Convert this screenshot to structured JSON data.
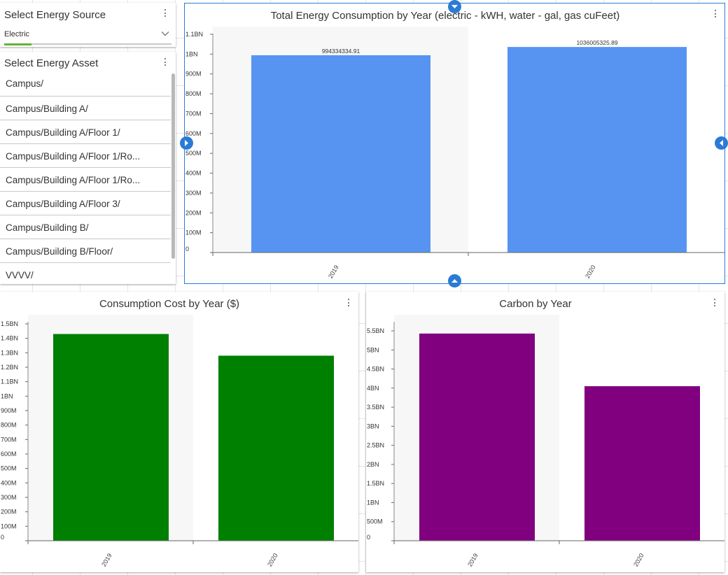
{
  "energy_source": {
    "title": "Select Energy Source",
    "value": "Electric"
  },
  "energy_asset": {
    "title": "Select Energy Asset",
    "items": [
      "Campus/",
      "Campus/Building A/",
      "Campus/Building A/Floor 1/",
      "Campus/Building A/Floor 1/Ro...",
      "Campus/Building A/Floor 1/Ro...",
      "Campus/Building A/Floor 3/",
      "Campus/Building B/",
      "Campus/Building B/Floor/",
      "VVVV/"
    ]
  },
  "icons": {
    "menu": "kebab-menu-icon",
    "dropdown": "chevron-down-icon",
    "resize": "resize-handle-icon"
  },
  "colors": {
    "accent_blue": "#2b7bd6",
    "energy_bar": "#5794f2",
    "cost_bar": "#008000",
    "carbon_bar": "#800080",
    "dropdown_underline": "#63b32e"
  },
  "chart_data": [
    {
      "id": "energy",
      "type": "bar",
      "title": "Total Energy Consumption by Year (electric - kWH, water - gal, gas cuFeet)",
      "categories": [
        "2019",
        "2020"
      ],
      "values": [
        994334334.91,
        1036005325.89
      ],
      "data_labels": [
        "994334334.91",
        "1036005325.89"
      ],
      "ylim": [
        0,
        1100000000
      ],
      "yticks": [
        {
          "v": 0,
          "label": "0"
        },
        {
          "v": 100000000,
          "label": "100M"
        },
        {
          "v": 200000000,
          "label": "200M"
        },
        {
          "v": 300000000,
          "label": "300M"
        },
        {
          "v": 400000000,
          "label": "400M"
        },
        {
          "v": 500000000,
          "label": "500M"
        },
        {
          "v": 600000000,
          "label": "600M"
        },
        {
          "v": 700000000,
          "label": "700M"
        },
        {
          "v": 800000000,
          "label": "800M"
        },
        {
          "v": 900000000,
          "label": "900M"
        },
        {
          "v": 1000000000,
          "label": "1BN"
        },
        {
          "v": 1100000000,
          "label": "1.1BN"
        }
      ],
      "color": "#5794f2"
    },
    {
      "id": "cost",
      "type": "bar",
      "title": "Consumption Cost by Year ($)",
      "categories": [
        "2019",
        "2020"
      ],
      "values": [
        1430000000,
        1280000000
      ],
      "ylim": [
        0,
        1500000000
      ],
      "yticks": [
        {
          "v": 0,
          "label": "0"
        },
        {
          "v": 100000000,
          "label": "100M"
        },
        {
          "v": 200000000,
          "label": "200M"
        },
        {
          "v": 300000000,
          "label": "300M"
        },
        {
          "v": 400000000,
          "label": "400M"
        },
        {
          "v": 500000000,
          "label": "500M"
        },
        {
          "v": 600000000,
          "label": "600M"
        },
        {
          "v": 700000000,
          "label": "700M"
        },
        {
          "v": 800000000,
          "label": "800M"
        },
        {
          "v": 900000000,
          "label": "900M"
        },
        {
          "v": 1000000000,
          "label": "1BN"
        },
        {
          "v": 1100000000,
          "label": "1.1BN"
        },
        {
          "v": 1200000000,
          "label": "1.2BN"
        },
        {
          "v": 1300000000,
          "label": "1.3BN"
        },
        {
          "v": 1400000000,
          "label": "1.4BN"
        },
        {
          "v": 1500000000,
          "label": "1.5BN"
        }
      ],
      "color": "#008000"
    },
    {
      "id": "carbon",
      "type": "bar",
      "title": "Carbon by Year",
      "categories": [
        "2019",
        "2020"
      ],
      "values": [
        5430000000,
        4050000000
      ],
      "ylim": [
        0,
        5500000000
      ],
      "yticks": [
        {
          "v": 0,
          "label": "0"
        },
        {
          "v": 500000000,
          "label": "500M"
        },
        {
          "v": 1000000000,
          "label": "1BN"
        },
        {
          "v": 1500000000,
          "label": "1.5BN"
        },
        {
          "v": 2000000000,
          "label": "2BN"
        },
        {
          "v": 2500000000,
          "label": "2.5BN"
        },
        {
          "v": 3000000000,
          "label": "3BN"
        },
        {
          "v": 3500000000,
          "label": "3.5BN"
        },
        {
          "v": 4000000000,
          "label": "4BN"
        },
        {
          "v": 4500000000,
          "label": "4.5BN"
        },
        {
          "v": 5000000000,
          "label": "5BN"
        },
        {
          "v": 5500000000,
          "label": "5.5BN"
        }
      ],
      "color": "#800080"
    }
  ]
}
